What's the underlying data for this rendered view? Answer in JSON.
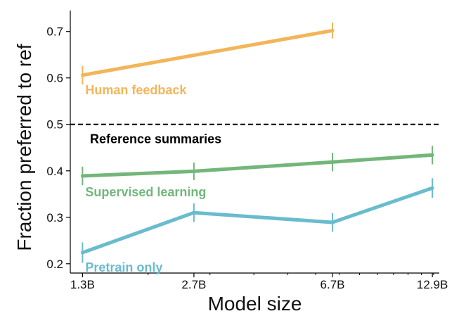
{
  "chart_data": {
    "type": "line",
    "title": "",
    "xlabel": "Model size",
    "ylabel": "Fraction preferred to ref",
    "x_scale": "log",
    "x": [
      1.3,
      2.7,
      6.7,
      12.9
    ],
    "x_tick_labels": [
      "1.3B",
      "2.7B",
      "6.7B",
      "12.9B"
    ],
    "y_ticks": [
      0.2,
      0.3,
      0.4,
      0.5,
      0.6,
      0.7
    ],
    "y_tick_labels": [
      "0.2",
      "0.3",
      "0.4",
      "0.5",
      "0.6",
      "0.7"
    ],
    "ylim": [
      0.18,
      0.745
    ],
    "xlim": [
      1.2,
      13.5
    ],
    "grid": false,
    "series": [
      {
        "name": "Human feedback",
        "label": "Human feedback",
        "color": "#f2b55a",
        "x": [
          1.3,
          6.7
        ],
        "values": [
          0.606,
          0.702
        ],
        "error": [
          0.02,
          0.017
        ]
      },
      {
        "name": "Supervised learning",
        "label": "Supervised learning",
        "color": "#73b67b",
        "x": [
          1.3,
          2.7,
          6.7,
          12.9
        ],
        "values": [
          0.389,
          0.399,
          0.419,
          0.434
        ],
        "error": [
          0.02,
          0.019,
          0.02,
          0.02
        ]
      },
      {
        "name": "Pretrain only",
        "label": "Pretrain only",
        "color": "#69bccd",
        "x": [
          1.3,
          2.7,
          6.7,
          12.9
        ],
        "values": [
          0.224,
          0.31,
          0.289,
          0.363
        ],
        "error": [
          0.022,
          0.02,
          0.02,
          0.021
        ]
      }
    ],
    "reference_line": {
      "value": 0.5,
      "label": "Reference summaries",
      "color": "#000000",
      "style": "dashed"
    }
  }
}
